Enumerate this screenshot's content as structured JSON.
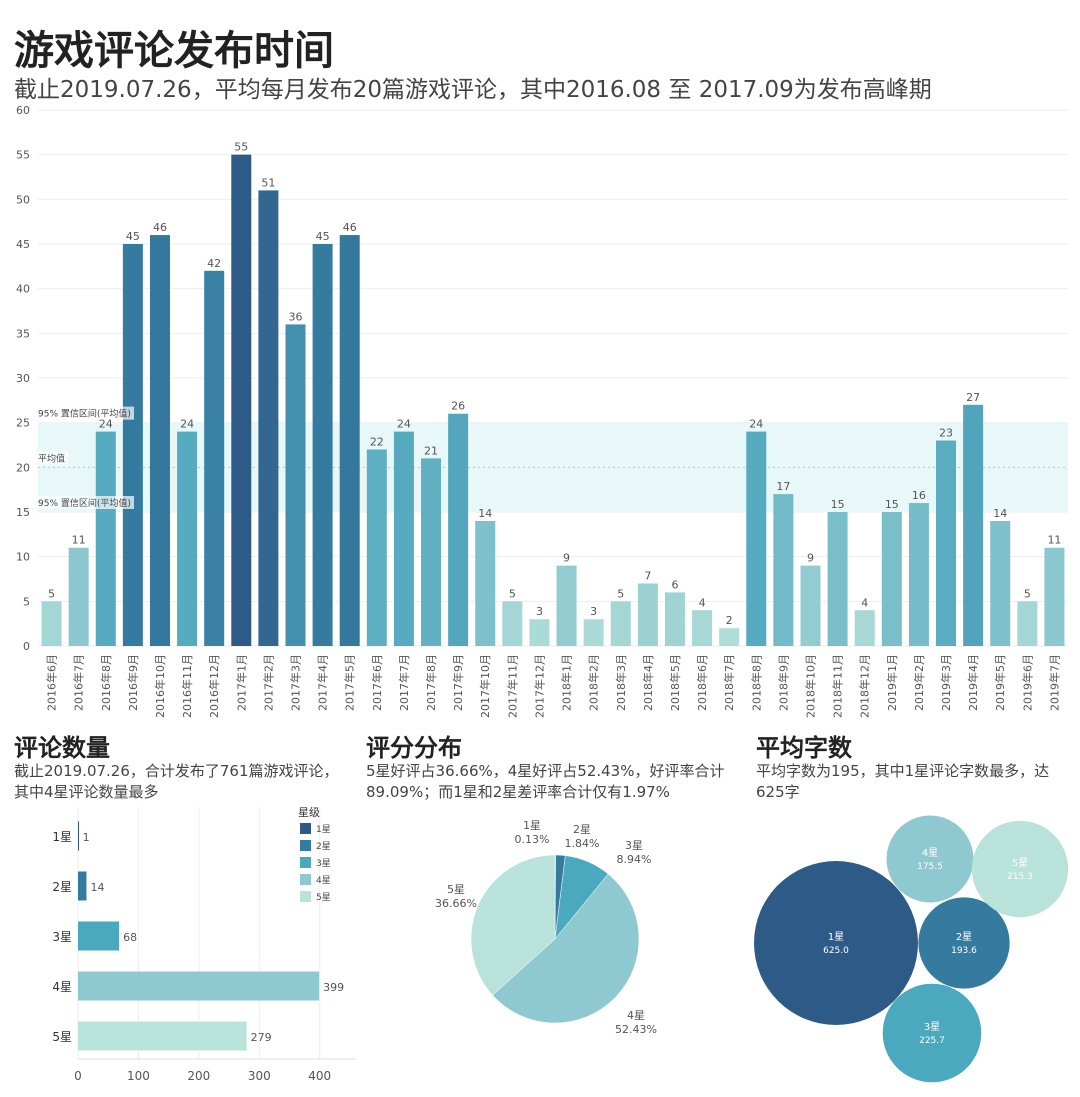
{
  "colors": {
    "navy": "#2e5a87",
    "blue": "#357ba0",
    "mid": "#4aa8bf",
    "teal": "#56abc0",
    "light": "#8ec9d0",
    "pale": "#b8e2da",
    "band": "#e8f8f9",
    "grid": "#eeeeee",
    "text": "#555555"
  },
  "header": {
    "title": "游戏评论发布时间",
    "subtitle": "截止2019.07.26，平均每月发布20篇游戏评论，其中2016.08 至 2017.09为发布高峰期"
  },
  "chart_data": [
    {
      "type": "bar",
      "name": "monthly",
      "categories": [
        "2016年6月",
        "2016年7月",
        "2016年8月",
        "2016年9月",
        "2016年10月",
        "2016年11月",
        "2016年12月",
        "2017年1月",
        "2017年2月",
        "2017年3月",
        "2017年4月",
        "2017年5月",
        "2017年6月",
        "2017年7月",
        "2017年8月",
        "2017年9月",
        "2017年10月",
        "2017年11月",
        "2017年12月",
        "2018年1月",
        "2018年2月",
        "2018年3月",
        "2018年4月",
        "2018年5月",
        "2018年6月",
        "2018年7月",
        "2018年8月",
        "2018年9月",
        "2018年10月",
        "2018年11月",
        "2018年12月",
        "2019年1月",
        "2019年2月",
        "2019年3月",
        "2019年4月",
        "2019年5月",
        "2019年6月",
        "2019年7月"
      ],
      "values": [
        5,
        11,
        24,
        45,
        46,
        24,
        42,
        55,
        51,
        36,
        45,
        46,
        22,
        24,
        21,
        26,
        14,
        5,
        3,
        9,
        3,
        5,
        7,
        6,
        4,
        2,
        24,
        17,
        9,
        15,
        4,
        15,
        16,
        23,
        27,
        14,
        5,
        11
      ],
      "ylim": [
        0,
        60
      ],
      "yticks": [
        0,
        5,
        10,
        15,
        20,
        25,
        30,
        35,
        40,
        45,
        50,
        55,
        60
      ],
      "reference": {
        "mean": 20,
        "ci_low": 15,
        "ci_high": 25,
        "mean_label": "平均值",
        "ci_label": "95% 置信区间(平均值)"
      }
    },
    {
      "type": "bar",
      "name": "stars_count",
      "orientation": "horizontal",
      "title": "评论数量",
      "categories": [
        "1星",
        "2星",
        "3星",
        "4星",
        "5星"
      ],
      "values": [
        1,
        14,
        68,
        399,
        279
      ],
      "xlim": [
        0,
        460
      ],
      "xticks": [
        0,
        100,
        200,
        300,
        400
      ],
      "legend_title": "星级",
      "legend": [
        "1星",
        "2星",
        "3星",
        "4星",
        "5星"
      ]
    },
    {
      "type": "pie",
      "name": "rating_share",
      "title": "评分分布",
      "labels": [
        "1星",
        "2星",
        "3星",
        "4星",
        "5星"
      ],
      "values": [
        0.13,
        1.84,
        8.94,
        52.43,
        36.66
      ],
      "value_labels": [
        "0.13%",
        "1.84%",
        "8.94%",
        "52.43%",
        "36.66%"
      ]
    },
    {
      "type": "bubble",
      "name": "avg_words",
      "title": "平均字数",
      "labels": [
        "1星",
        "2星",
        "3星",
        "4星",
        "5星"
      ],
      "values": [
        625.0,
        193.6,
        225.7,
        175.5,
        215.3
      ],
      "value_labels": [
        "625.0",
        "193.6",
        "225.7",
        "175.5",
        "215.3"
      ]
    }
  ],
  "sections": {
    "count": {
      "title": "评论数量",
      "desc1": "截止2019.07.26，合计发布了761篇游戏评论，",
      "desc2": "其中4星评论数量最多"
    },
    "rating": {
      "title": "评分分布",
      "desc1": "5星好评占36.66%，4星好评占52.43%，好评率合计",
      "desc2": "89.09%；而1星和2星差评率合计仅有1.97%"
    },
    "words": {
      "title": "平均字数",
      "desc1": "平均字数为195，其中1星评论字数最多，达",
      "desc2": "625字"
    }
  }
}
